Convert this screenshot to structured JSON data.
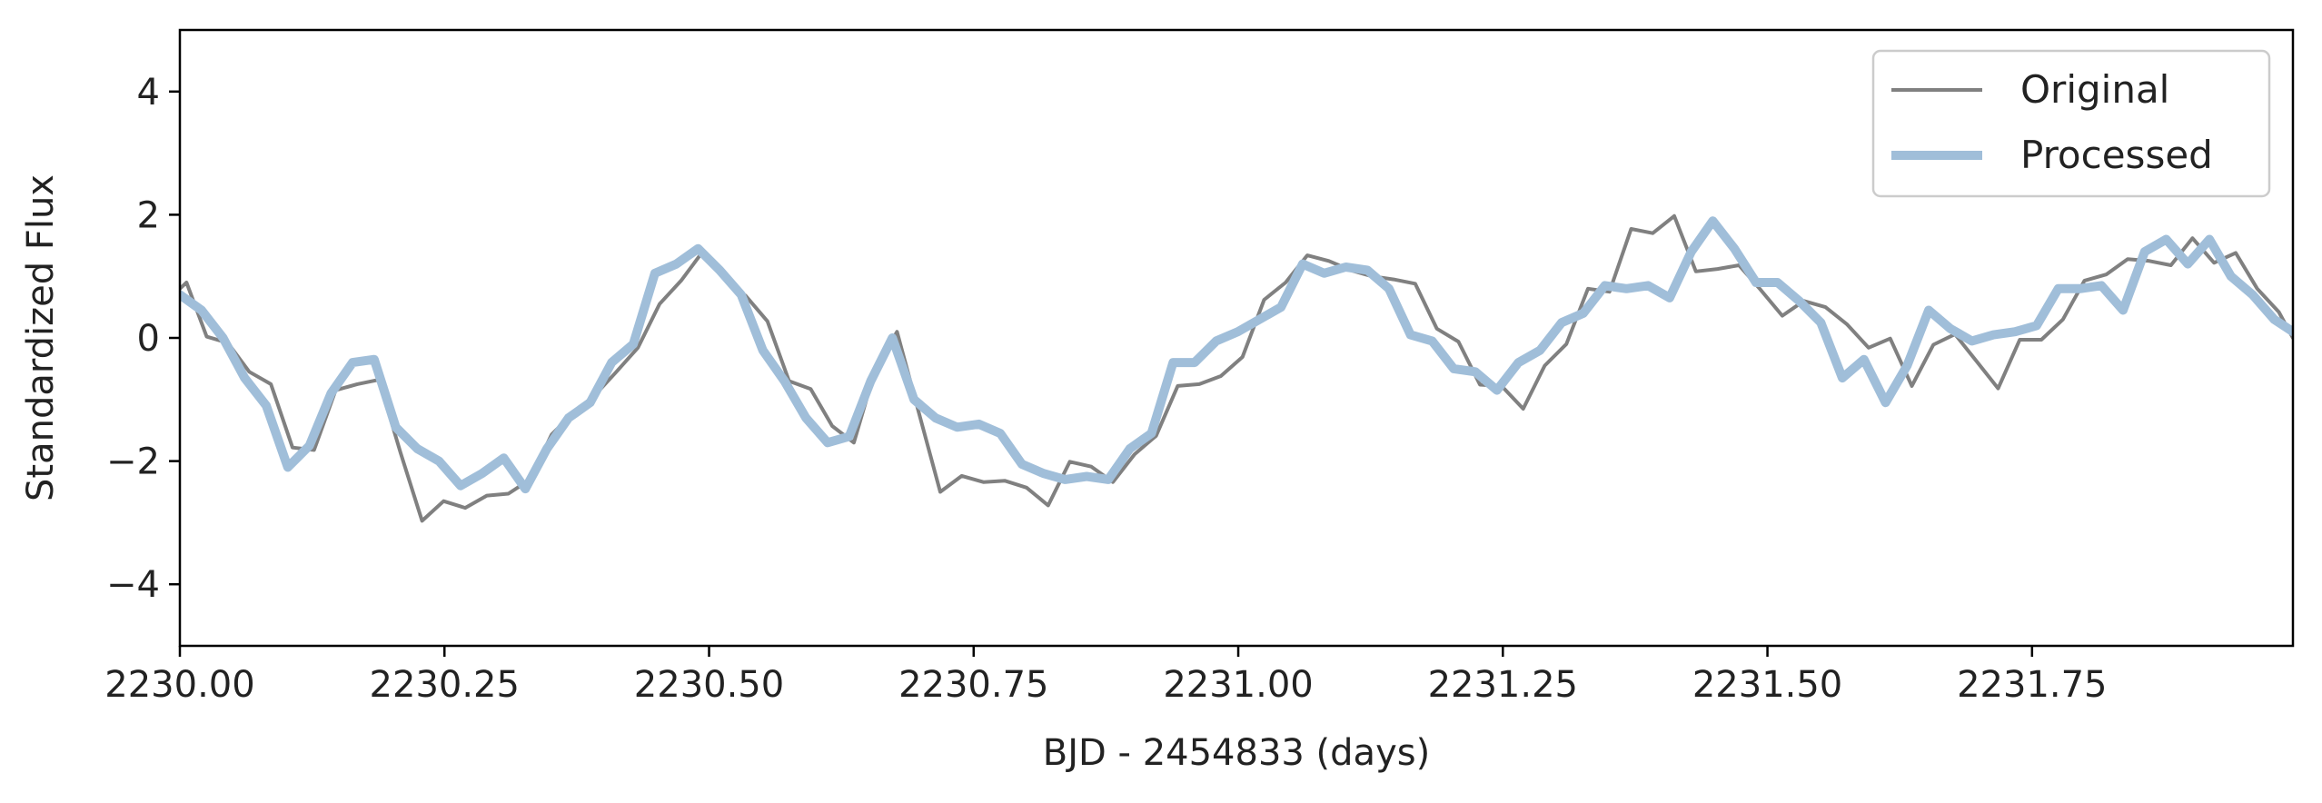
{
  "chart_data": {
    "type": "line",
    "title": "",
    "xlabel": "BJD - 2454833 (days)",
    "ylabel": "Standardized Flux",
    "xlim": [
      2230.0,
      2231.9965
    ],
    "ylim": [
      -5,
      5
    ],
    "xticks": [
      2230.0,
      2230.25,
      2230.5,
      2230.75,
      2231.0,
      2231.25,
      2231.5,
      2231.75
    ],
    "xtick_labels": [
      "2230.00",
      "2230.25",
      "2230.50",
      "2230.75",
      "2231.00",
      "2231.25",
      "2231.50",
      "2231.75"
    ],
    "yticks": [
      4,
      2,
      0,
      -2,
      -4
    ],
    "ytick_labels": [
      "4",
      "2",
      "0",
      "−2",
      "−4"
    ],
    "grid": false,
    "legend": {
      "position": "top-right",
      "entries": [
        "Original",
        "Processed"
      ]
    },
    "series": [
      {
        "name": "Original",
        "color": "#808080",
        "x": [
          2230.0,
          2230.0063,
          2230.0253,
          2230.0452,
          2230.0656,
          2230.086,
          2230.1064,
          2230.1268,
          2230.1472,
          2230.1676,
          2230.188,
          2230.2084,
          2230.2288,
          2230.2492,
          2230.2696,
          2230.29,
          2230.3104,
          2230.3308,
          2230.3512,
          2230.3716,
          2230.392,
          2230.4124,
          2230.4328,
          2230.4532,
          2230.4736,
          2230.494,
          2230.5144,
          2230.5348,
          2230.5552,
          2230.5756,
          2230.596,
          2230.6164,
          2230.6368,
          2230.6572,
          2230.6776,
          2230.698,
          2230.7184,
          2230.7388,
          2230.7592,
          2230.7796,
          2230.8,
          2230.8204,
          2230.8408,
          2230.8612,
          2230.8816,
          2230.902,
          2230.9224,
          2230.9428,
          2230.9632,
          2230.9836,
          2231.004,
          2231.0244,
          2231.0448,
          2231.0652,
          2231.0856,
          2231.106,
          2231.1264,
          2231.1468,
          2231.1672,
          2231.1876,
          2231.208,
          2231.2284,
          2231.2488,
          2231.2692,
          2231.2896,
          2231.31,
          2231.3304,
          2231.3508,
          2231.3712,
          2231.3916,
          2231.412,
          2231.4324,
          2231.4528,
          2231.4732,
          2231.4936,
          2231.514,
          2231.5344,
          2231.5548,
          2231.5752,
          2231.5956,
          2231.616,
          2231.6364,
          2231.6568,
          2231.6772,
          2231.6976,
          2231.718,
          2231.7384,
          2231.7588,
          2231.7792,
          2231.7996,
          2231.82,
          2231.8404,
          2231.8608,
          2231.8812,
          2231.9016,
          2231.922,
          2231.9424,
          2231.9628,
          2231.9832,
          2231.9965
        ],
        "values": [
          0.8,
          0.9,
          0.02,
          -0.08,
          -0.55,
          -0.75,
          -1.78,
          -1.82,
          -0.85,
          -0.75,
          -0.68,
          -1.86,
          -2.97,
          -2.65,
          -2.76,
          -2.56,
          -2.53,
          -2.3,
          -1.57,
          -1.22,
          -0.93,
          -0.55,
          -0.16,
          0.55,
          0.93,
          1.4,
          0.98,
          0.68,
          0.27,
          -0.7,
          -0.83,
          -1.43,
          -1.7,
          -0.5,
          0.1,
          -1.2,
          -2.5,
          -2.24,
          -2.34,
          -2.32,
          -2.43,
          -2.72,
          -2.01,
          -2.09,
          -2.34,
          -1.89,
          -1.59,
          -0.78,
          -0.75,
          -0.62,
          -0.31,
          0.62,
          0.9,
          1.34,
          1.25,
          1.1,
          1.0,
          0.95,
          0.88,
          0.15,
          -0.06,
          -0.76,
          -0.78,
          -1.15,
          -0.45,
          -0.1,
          0.8,
          0.75,
          1.77,
          1.7,
          1.98,
          1.08,
          1.12,
          1.18,
          0.78,
          0.36,
          0.6,
          0.5,
          0.22,
          -0.16,
          -0.01,
          -0.78,
          -0.11,
          0.06,
          -0.38,
          -0.82,
          -0.03,
          -0.03,
          0.3,
          0.93,
          1.03,
          1.28,
          1.25,
          1.18,
          1.62,
          1.22,
          1.38,
          0.8,
          0.42,
          0.0
        ]
      },
      {
        "name": "Processed",
        "color": "#a0bed9",
        "x": [
          2230.0,
          2230.0204,
          2230.0408,
          2230.0612,
          2230.0816,
          2230.102,
          2230.1224,
          2230.1428,
          2230.1632,
          2230.1836,
          2230.204,
          2230.2244,
          2230.2448,
          2230.2652,
          2230.2856,
          2230.306,
          2230.3264,
          2230.3468,
          2230.3672,
          2230.3876,
          2230.408,
          2230.4284,
          2230.4488,
          2230.4692,
          2230.4896,
          2230.51,
          2230.5304,
          2230.5508,
          2230.5712,
          2230.5916,
          2230.612,
          2230.6324,
          2230.6528,
          2230.6732,
          2230.6936,
          2230.714,
          2230.7344,
          2230.7548,
          2230.7752,
          2230.7956,
          2230.816,
          2230.8364,
          2230.8568,
          2230.8772,
          2230.8976,
          2230.918,
          2230.9384,
          2230.9588,
          2230.9792,
          2230.9996,
          2231.02,
          2231.0404,
          2231.0608,
          2231.0812,
          2231.1016,
          2231.122,
          2231.1424,
          2231.1628,
          2231.1832,
          2231.2036,
          2231.224,
          2231.2444,
          2231.2648,
          2231.2852,
          2231.3056,
          2231.326,
          2231.3464,
          2231.3668,
          2231.3872,
          2231.4076,
          2231.428,
          2231.4484,
          2231.4688,
          2231.4892,
          2231.5096,
          2231.53,
          2231.5504,
          2231.5708,
          2231.5912,
          2231.6116,
          2231.632,
          2231.6524,
          2231.6728,
          2231.6932,
          2231.7136,
          2231.734,
          2231.7544,
          2231.7748,
          2231.7952,
          2231.8156,
          2231.836,
          2231.8564,
          2231.8768,
          2231.8972,
          2231.9176,
          2231.938,
          2231.9584,
          2231.9788,
          2231.9965
        ],
        "values": [
          0.7,
          0.45,
          0.0,
          -0.65,
          -1.1,
          -2.1,
          -1.75,
          -0.9,
          -0.4,
          -0.35,
          -1.45,
          -1.8,
          -2.0,
          -2.4,
          -2.2,
          -1.95,
          -2.45,
          -1.8,
          -1.3,
          -1.05,
          -0.4,
          -0.1,
          1.05,
          1.2,
          1.45,
          1.1,
          0.7,
          -0.2,
          -0.7,
          -1.3,
          -1.7,
          -1.6,
          -0.7,
          0.0,
          -1.0,
          -1.3,
          -1.45,
          -1.4,
          -1.55,
          -2.05,
          -2.2,
          -2.3,
          -2.25,
          -2.3,
          -1.8,
          -1.55,
          -0.4,
          -0.4,
          -0.05,
          0.1,
          0.3,
          0.5,
          1.2,
          1.05,
          1.15,
          1.1,
          0.8,
          0.05,
          -0.05,
          -0.5,
          -0.55,
          -0.85,
          -0.4,
          -0.2,
          0.25,
          0.4,
          0.85,
          0.8,
          0.85,
          0.65,
          1.4,
          1.9,
          1.45,
          0.9,
          0.9,
          0.6,
          0.25,
          -0.65,
          -0.35,
          -1.05,
          -0.45,
          0.45,
          0.15,
          -0.05,
          0.05,
          0.1,
          0.2,
          0.8,
          0.8,
          0.85,
          0.45,
          1.4,
          1.6,
          1.2,
          1.6,
          1.0,
          0.7,
          0.3,
          0.1
        ]
      }
    ]
  }
}
